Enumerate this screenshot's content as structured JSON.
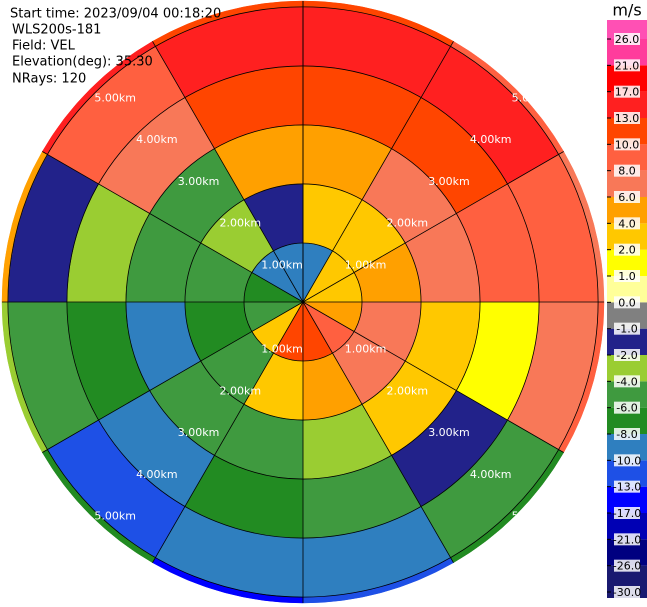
{
  "chart_data": {
    "type": "ppi",
    "header": [
      "Start time: 2023/09/04 00:18:20",
      "WLS200s-181",
      "Field: VEL",
      "Elevation(deg): 35.30",
      "NRays: 120"
    ],
    "azimuth_edges": [
      0,
      30,
      60,
      90,
      120,
      150,
      180,
      210,
      240,
      270,
      300,
      330,
      360
    ],
    "range_edges": [
      0,
      1,
      2,
      3,
      4,
      5,
      5.1
    ],
    "rlim": [
      0,
      5.1
    ],
    "rings": [
      {
        "value": 1,
        "label": "1.00km"
      },
      {
        "value": 2,
        "label": "2.00km"
      },
      {
        "value": 3,
        "label": "3.00km"
      },
      {
        "value": 4,
        "label": "4.00km"
      },
      {
        "value": 5,
        "label": "5.00km"
      }
    ],
    "values": [
      [
        -10,
        2,
        4,
        10,
        13,
        10
      ],
      [
        2,
        2,
        6,
        10,
        13,
        8
      ],
      [
        2,
        4,
        6,
        8,
        8,
        6
      ],
      [
        4,
        6,
        2,
        1,
        6,
        8
      ],
      [
        8,
        6,
        2,
        -2,
        -6,
        -8
      ],
      [
        10,
        4,
        -4,
        -6,
        -10,
        -13
      ],
      [
        10,
        2,
        -6,
        -8,
        -10,
        -17
      ],
      [
        2,
        -6,
        -6,
        -10,
        -13,
        -8
      ],
      [
        -6,
        -8,
        -10,
        -8,
        -6,
        -4
      ],
      [
        -8,
        -6,
        -6,
        -4,
        -2,
        4
      ],
      [
        -10,
        -4,
        -6,
        6,
        8,
        13
      ],
      [
        -10,
        -2,
        4,
        10,
        13,
        10
      ]
    ],
    "colorbar": {
      "label": "m/s",
      "ticks": [
        {
          "value": -30,
          "label": "-30.0"
        },
        {
          "value": -26,
          "label": "-26.0"
        },
        {
          "value": -21,
          "label": "-21.0"
        },
        {
          "value": -17,
          "label": "-17.0"
        },
        {
          "value": -13,
          "label": "-13.0"
        },
        {
          "value": -10,
          "label": "-10.0"
        },
        {
          "value": -8,
          "label": "-8.0"
        },
        {
          "value": -6,
          "label": "-6.0"
        },
        {
          "value": -4,
          "label": "-4.0"
        },
        {
          "value": -2,
          "label": "-2.0"
        },
        {
          "value": -1,
          "label": "-1.0"
        },
        {
          "value": 0,
          "label": "0.0"
        },
        {
          "value": 1,
          "label": "1.0"
        },
        {
          "value": 2,
          "label": "2.0"
        },
        {
          "value": 4,
          "label": "4.0"
        },
        {
          "value": 6,
          "label": "6.0"
        },
        {
          "value": 8,
          "label": "8.0"
        },
        {
          "value": 10,
          "label": "10.0"
        },
        {
          "value": 13,
          "label": "13.0"
        },
        {
          "value": 17,
          "label": "17.0"
        },
        {
          "value": 21,
          "label": "21.0"
        },
        {
          "value": 26,
          "label": "26.0"
        }
      ],
      "colors": [
        "#191970",
        "#000080",
        "#0000b4",
        "#0000ff",
        "#1e50e6",
        "#2f7fbf",
        "#228b22",
        "#3f9a3f",
        "#9acd32",
        "#22228a",
        "#808080",
        "#ffff99",
        "#ffff00",
        "#ffc800",
        "#ffa000",
        "#f87858",
        "#ff6040",
        "#ff4500",
        "#ff2020",
        "#ff0000",
        "#ff3c9c",
        "#ff50b4"
      ]
    }
  }
}
